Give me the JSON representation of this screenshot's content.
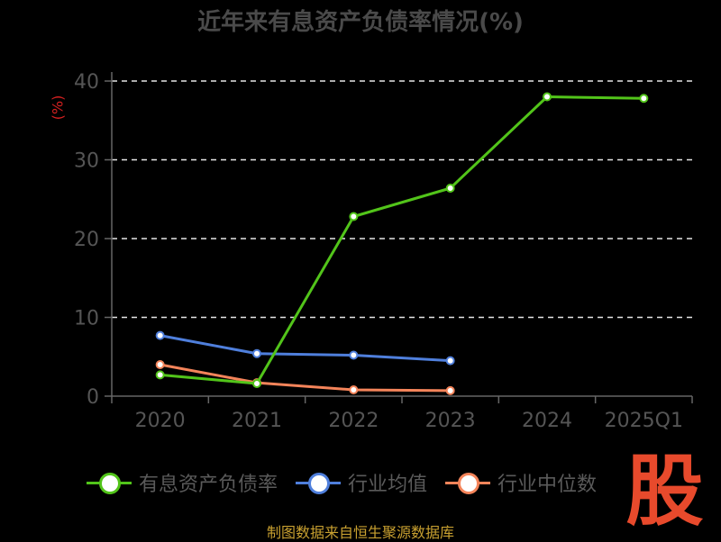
{
  "chart_data": {
    "type": "line",
    "title": "近年来有息资产负债率情况(%)",
    "ylabel": "(%)",
    "categories": [
      "2020",
      "2021",
      "2022",
      "2023",
      "2024",
      "2025Q1"
    ],
    "ylim": [
      0,
      40
    ],
    "yticks": [
      0,
      10,
      20,
      30,
      40
    ],
    "grid": true,
    "legend_position": "bottom",
    "series": [
      {
        "name": "有息资产负债率",
        "color": "#52c41a",
        "values": [
          2.7,
          1.6,
          22.8,
          26.4,
          38.0,
          37.8
        ]
      },
      {
        "name": "行业均值",
        "color": "#4f7fdc",
        "values": [
          7.7,
          5.4,
          5.2,
          4.5,
          null,
          null
        ]
      },
      {
        "name": "行业中位数",
        "color": "#f4845a",
        "values": [
          4.0,
          1.7,
          0.8,
          0.7,
          null,
          null
        ]
      }
    ]
  },
  "footer": {
    "source": "制图数据来自恒生聚源数据库"
  },
  "logo": {
    "text": "股"
  }
}
